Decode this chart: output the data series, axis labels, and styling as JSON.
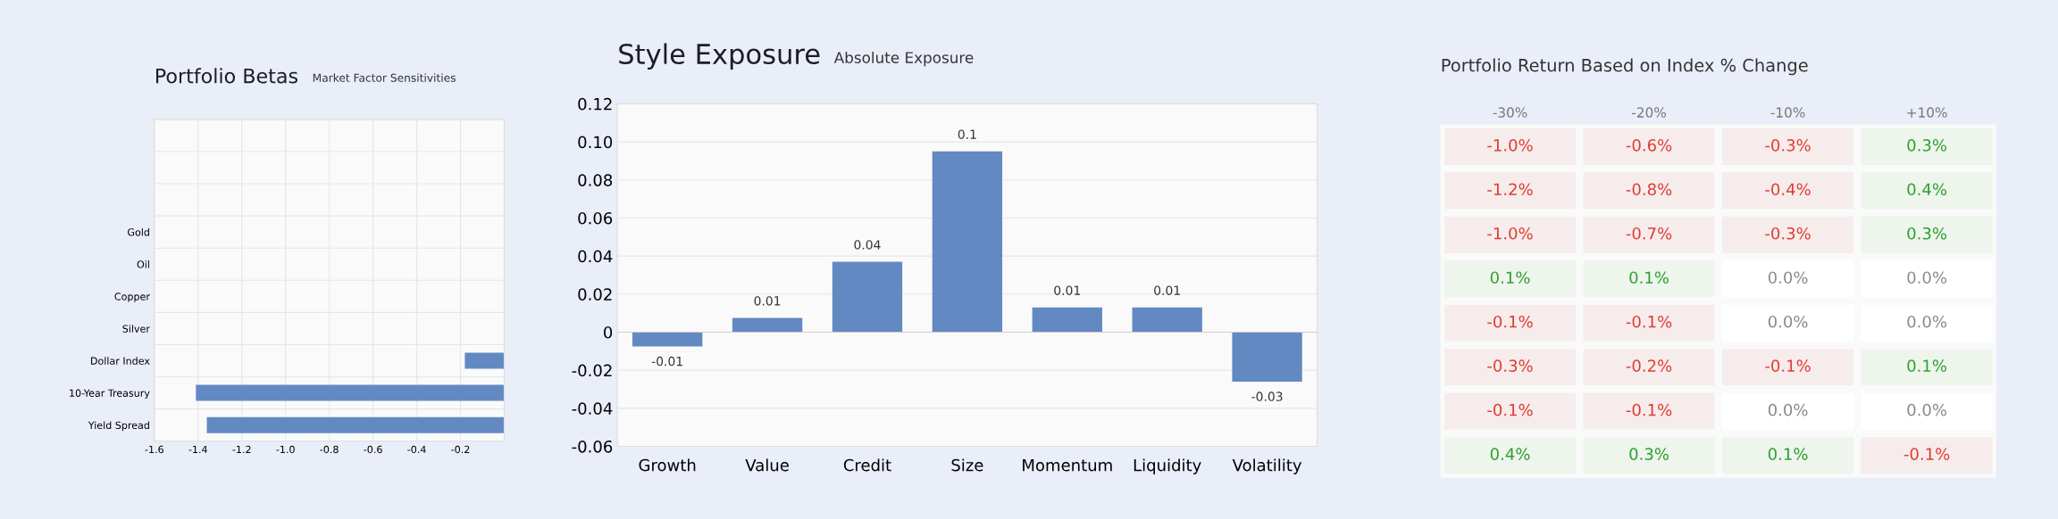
{
  "chart_data": [
    {
      "type": "bar",
      "orientation": "horizontal",
      "title": "Portfolio Betas",
      "subtitle": "Market Factor Sensitivities",
      "categories": [
        null,
        null,
        null,
        "Gold",
        "Oil",
        "Copper",
        "Silver",
        "Dollar Index",
        "10-Year Treasury",
        "Yield Spread"
      ],
      "values": [
        null,
        null,
        null,
        null,
        null,
        null,
        null,
        -0.18,
        -1.41,
        -1.36
      ],
      "color": "#6389c2",
      "xlim": [
        -1.6,
        0
      ],
      "xticks": [
        -1.6,
        -1.4,
        -1.2,
        {
          "value": -1.0,
          "label": "-1.0"
        },
        -0.8,
        -0.6,
        -0.4,
        -0.2
      ],
      "grid": true
    },
    {
      "type": "bar",
      "title": "Style Exposure",
      "subtitle": "Absolute Exposure",
      "categories": [
        "Growth",
        "Value",
        "Credit",
        "Size",
        "Momentum",
        "Liquidity",
        "Volatility"
      ],
      "values": [
        -0.0075,
        0.0075,
        0.037,
        0.095,
        0.013,
        0.013,
        -0.026
      ],
      "color": "#6389c2",
      "value_labels": [
        "-0.01",
        "0.01",
        "0.04",
        "0.1",
        "0.01",
        "0.01",
        "-0.03"
      ],
      "ylim": [
        -0.06,
        0.12
      ],
      "yticks": [
        {
          "value": -0.06,
          "label": "-0.06"
        },
        {
          "value": -0.04,
          "label": "-0.04"
        },
        {
          "value": -0.02,
          "label": "-0.02"
        },
        {
          "value": 0,
          "label": "0"
        },
        {
          "value": 0.02,
          "label": "0.02"
        },
        {
          "value": 0.04,
          "label": "0.04"
        },
        {
          "value": 0.06,
          "label": "0.06"
        },
        {
          "value": 0.08,
          "label": "0.08"
        },
        {
          "value": 0.1,
          "label": "0.10"
        },
        {
          "value": 0.12,
          "label": "0.12"
        }
      ],
      "grid": "y"
    },
    {
      "type": "heatmap",
      "title": "Portfolio Return Based on Index % Change",
      "categories": [
        "-30%",
        "-20%",
        "-10%",
        "+10%"
      ],
      "y_categories": [
        null,
        null,
        null,
        null,
        null,
        null,
        null,
        null
      ],
      "cells": [
        [
          -1.0,
          -0.6,
          -0.3,
          0.3
        ],
        [
          -1.2,
          -0.8,
          -0.4,
          0.4
        ],
        [
          -1.0,
          -0.7,
          -0.3,
          0.3
        ],
        [
          0.1,
          0.1,
          0.0,
          0.0
        ],
        [
          -0.1,
          -0.1,
          0.0,
          0.0
        ],
        [
          -0.3,
          -0.2,
          -0.1,
          0.1
        ],
        [
          -0.1,
          -0.1,
          0.0,
          0.0
        ],
        [
          0.4,
          0.3,
          0.1,
          -0.1
        ]
      ],
      "cell_labels": [
        [
          "-1.0%",
          "-0.6%",
          "-0.3%",
          "0.3%"
        ],
        [
          "-1.2%",
          "-0.8%",
          "-0.4%",
          "0.4%"
        ],
        [
          "-1.0%",
          "-0.7%",
          "-0.3%",
          "0.3%"
        ],
        [
          "0.1%",
          "0.1%",
          "0.0%",
          "0.0%"
        ],
        [
          "-0.1%",
          "-0.1%",
          "0.0%",
          "0.0%"
        ],
        [
          "-0.3%",
          "-0.2%",
          "-0.1%",
          "0.1%"
        ],
        [
          "-0.1%",
          "-0.1%",
          "0.0%",
          "0.0%"
        ],
        [
          "0.4%",
          "0.3%",
          "0.1%",
          "-0.1%"
        ]
      ],
      "tick_labels": "x"
    }
  ]
}
